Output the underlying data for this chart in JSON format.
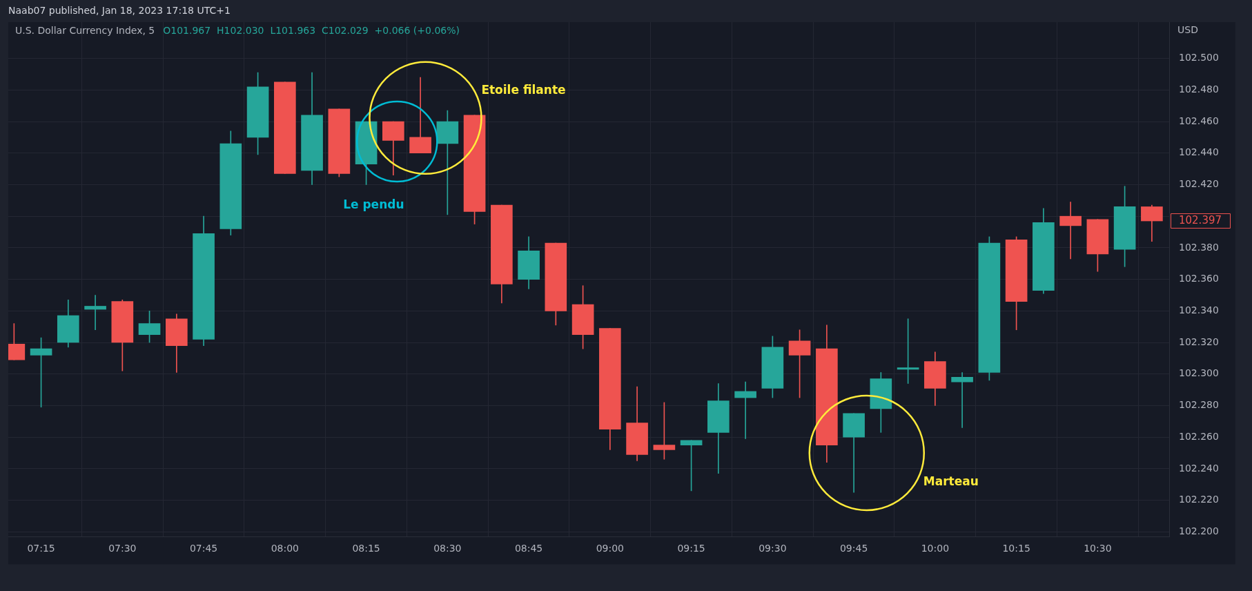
{
  "chart_data": {
    "type": "candlestick",
    "title": "U.S. Dollar Currency Index, 5",
    "subtitle": "O101.967  H102.030  L101.963  C102.029  +0.066 (+0.06%)",
    "ylabel": "USD",
    "annotations": [
      "Naab07 published, Jan 18, 2023 17:18 UTC+1",
      "Le pendu",
      "Etoile filante",
      "Marteau",
      "102.397"
    ],
    "x": [
      7.1667,
      7.25,
      7.3333,
      7.4167,
      7.5,
      7.5833,
      7.6667,
      7.75,
      7.8333,
      7.9167,
      8,
      8.0833,
      8.1667,
      8.25,
      8.3333,
      8.4167,
      8.5,
      8.5833,
      8.6667,
      8.75,
      8.8333,
      8.9167,
      9,
      9.0833,
      9.1667,
      9.25,
      9.3333,
      9.4167,
      9.5,
      9.5833,
      9.6667,
      9.75,
      9.8333,
      9.9167,
      10,
      10.0833,
      10.1667,
      10.25,
      10.3333,
      10.4167,
      10.5,
      10.5833,
      10.6667
    ],
    "ohlc": [
      [
        102.319,
        102.332,
        102.309,
        102.309
      ],
      [
        102.312,
        102.323,
        102.279,
        102.316
      ],
      [
        102.32,
        102.347,
        102.317,
        102.337
      ],
      [
        102.341,
        102.35,
        102.328,
        102.343
      ],
      [
        102.346,
        102.347,
        102.302,
        102.32
      ],
      [
        102.325,
        102.34,
        102.32,
        102.332
      ],
      [
        102.335,
        102.338,
        102.301,
        102.318
      ],
      [
        102.322,
        102.4,
        102.318,
        102.389
      ],
      [
        102.392,
        102.454,
        102.388,
        102.446
      ],
      [
        102.45,
        102.491,
        102.439,
        102.482
      ],
      [
        102.485,
        102.485,
        102.427,
        102.427
      ],
      [
        102.429,
        102.491,
        102.42,
        102.464
      ],
      [
        102.468,
        102.468,
        102.425,
        102.427
      ],
      [
        102.433,
        102.46,
        102.42,
        102.46
      ],
      [
        102.46,
        102.46,
        102.426,
        102.448
      ],
      [
        102.45,
        102.488,
        102.44,
        102.44
      ],
      [
        102.446,
        102.467,
        102.401,
        102.46
      ],
      [
        102.464,
        102.464,
        102.395,
        102.403
      ],
      [
        102.407,
        102.407,
        102.345,
        102.357
      ],
      [
        102.36,
        102.387,
        102.354,
        102.378
      ],
      [
        102.383,
        102.383,
        102.331,
        102.34
      ],
      [
        102.344,
        102.356,
        102.316,
        102.325
      ],
      [
        102.329,
        102.329,
        102.252,
        102.265
      ],
      [
        102.269,
        102.292,
        102.245,
        102.249
      ],
      [
        102.255,
        102.282,
        102.246,
        102.252
      ],
      [
        102.255,
        102.258,
        102.226,
        102.258
      ],
      [
        102.263,
        102.294,
        102.237,
        102.283
      ],
      [
        102.285,
        102.295,
        102.259,
        102.289
      ],
      [
        102.291,
        102.324,
        102.285,
        102.317
      ],
      [
        102.321,
        102.328,
        102.285,
        102.312
      ],
      [
        102.316,
        102.331,
        102.244,
        102.255
      ],
      [
        102.26,
        102.275,
        102.225,
        102.275
      ],
      [
        102.278,
        102.301,
        102.263,
        102.297
      ],
      [
        102.303,
        102.335,
        102.294,
        102.304
      ],
      [
        102.308,
        102.314,
        102.28,
        102.291
      ],
      [
        102.295,
        102.301,
        102.266,
        102.298
      ],
      [
        102.301,
        102.387,
        102.296,
        102.383
      ],
      [
        102.385,
        102.387,
        102.328,
        102.346
      ],
      [
        102.353,
        102.405,
        102.351,
        102.396
      ],
      [
        102.4,
        102.409,
        102.373,
        102.394
      ],
      [
        102.398,
        102.398,
        102.365,
        102.376
      ],
      [
        102.379,
        102.419,
        102.368,
        102.406
      ],
      [
        102.406,
        102.407,
        102.384,
        102.397
      ]
    ],
    "colors": [
      "#ef5350",
      "#26a69a",
      "#26a69a",
      "#26a69a",
      "#ef5350",
      "#26a69a",
      "#ef5350",
      "#26a69a",
      "#26a69a",
      "#26a69a",
      "#ef5350",
      "#26a69a",
      "#ef5350",
      "#26a69a",
      "#ef5350",
      "#ef5350",
      "#26a69a",
      "#ef5350",
      "#ef5350",
      "#26a69a",
      "#ef5350",
      "#ef5350",
      "#ef5350",
      "#ef5350",
      "#ef5350",
      "#26a69a",
      "#26a69a",
      "#26a69a",
      "#26a69a",
      "#ef5350",
      "#ef5350",
      "#26a69a",
      "#26a69a",
      "#26a69a",
      "#ef5350",
      "#26a69a",
      "#26a69a",
      "#ef5350",
      "#26a69a",
      "#ef5350",
      "#ef5350",
      "#26a69a",
      "#ef5350"
    ],
    "xlim": [
      7.149,
      10.72
    ],
    "xticks": [
      {
        "value": 7.25,
        "label": "07:15"
      },
      {
        "value": 7.5,
        "label": "07:30"
      },
      {
        "value": 7.75,
        "label": "07:45"
      },
      {
        "value": 8,
        "label": "08:00"
      },
      {
        "value": 8.25,
        "label": "08:15"
      },
      {
        "value": 8.5,
        "label": "08:30"
      },
      {
        "value": 8.75,
        "label": "08:45"
      },
      {
        "value": 9,
        "label": "09:00"
      },
      {
        "value": 9.25,
        "label": "09:15"
      },
      {
        "value": 9.5,
        "label": "09:30"
      },
      {
        "value": 9.75,
        "label": "09:45"
      },
      {
        "value": 10,
        "label": "10:00"
      },
      {
        "value": 10.25,
        "label": "10:15"
      },
      {
        "value": 10.5,
        "label": "10:30"
      }
    ],
    "ylim": [
      102.197,
      102.523
    ],
    "yticks": [
      {
        "value": 102.2,
        "label": "102.200"
      },
      {
        "value": 102.22,
        "label": "102.220"
      },
      {
        "value": 102.24,
        "label": "102.240"
      },
      {
        "value": 102.26,
        "label": "102.260"
      },
      {
        "value": 102.28,
        "label": "102.280"
      },
      {
        "value": 102.3,
        "label": "102.300"
      },
      {
        "value": 102.32,
        "label": "102.320"
      },
      {
        "value": 102.34,
        "label": "102.340"
      },
      {
        "value": 102.36,
        "label": "102.360"
      },
      {
        "value": 102.38,
        "label": "102.380"
      },
      {
        "value": 102.4,
        "label": null
      },
      {
        "value": 102.42,
        "label": "102.420"
      },
      {
        "value": 102.44,
        "label": "102.440"
      },
      {
        "value": 102.46,
        "label": "102.460"
      },
      {
        "value": 102.48,
        "label": "102.480"
      },
      {
        "value": 102.5,
        "label": "102.500"
      }
    ],
    "grid": true
  }
}
